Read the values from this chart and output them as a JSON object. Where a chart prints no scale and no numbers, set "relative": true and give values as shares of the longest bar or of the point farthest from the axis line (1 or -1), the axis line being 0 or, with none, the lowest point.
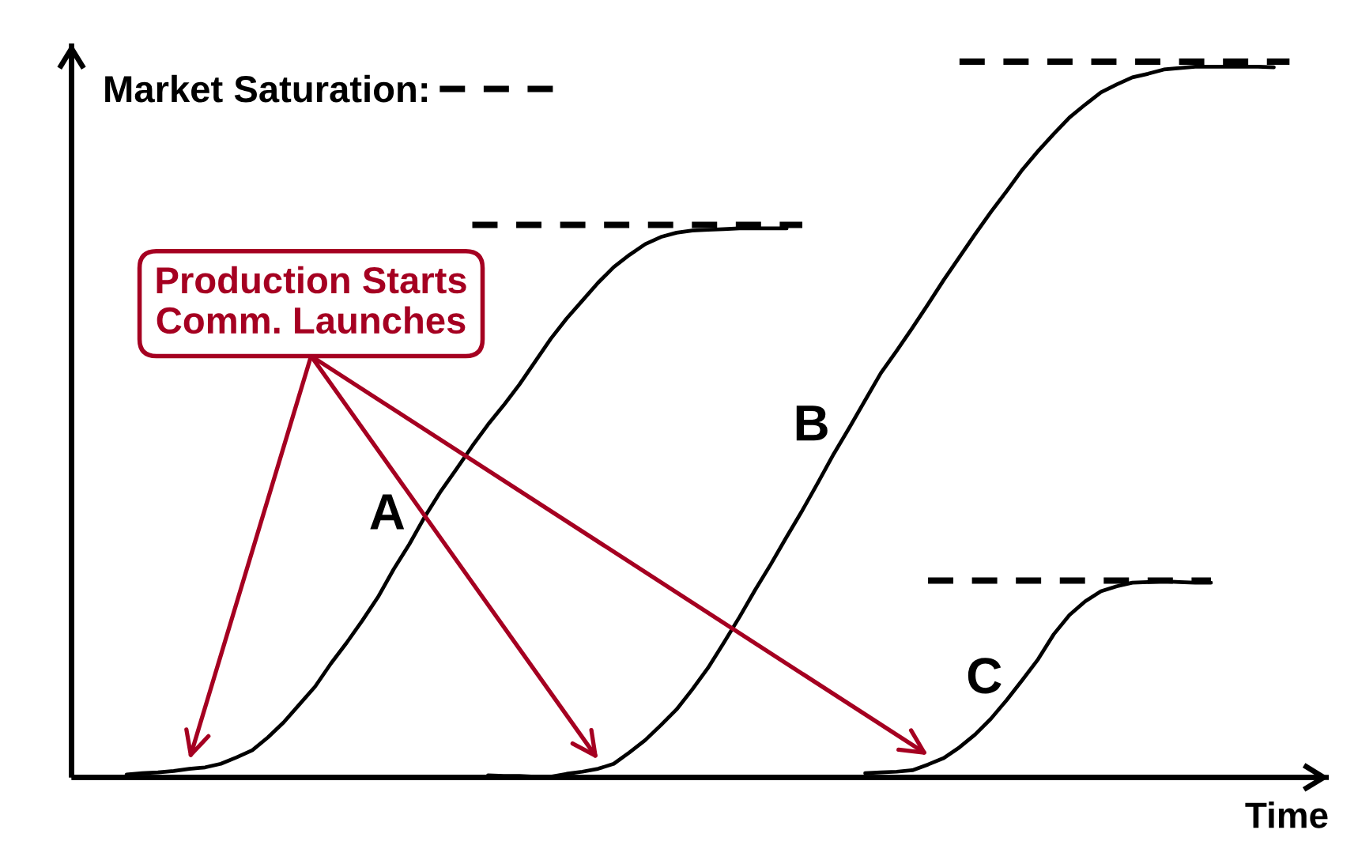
{
  "chart_data": {
    "type": "line",
    "relative": true,
    "xlabel": "Time",
    "legend": "top left",
    "tick_labels": false,
    "categories": [
      null,
      null,
      null,
      null,
      null,
      null,
      null,
      null,
      null,
      null,
      null,
      null,
      null,
      null,
      null,
      null,
      null,
      null,
      null,
      null,
      null,
      null,
      null,
      null,
      null,
      null,
      null,
      null,
      null,
      null,
      null,
      null,
      null,
      null,
      null,
      null,
      null,
      null,
      null,
      null,
      null,
      null,
      null,
      null,
      null,
      null,
      null,
      null,
      null,
      null,
      null,
      null,
      null,
      null,
      null,
      null,
      null,
      null,
      null,
      null,
      null,
      null,
      null,
      null,
      null,
      null,
      null,
      null,
      null,
      null,
      null,
      null,
      null,
      null,
      null,
      null,
      null,
      null,
      null,
      null
    ],
    "series": [
      {
        "name": "A",
        "color": "#000000",
        "values": [
          null,
          null,
          null,
          0.004,
          0.006,
          0.007,
          0.009,
          0.012,
          0.014,
          0.019,
          0.028,
          0.038,
          0.056,
          0.077,
          0.102,
          0.127,
          0.159,
          0.188,
          0.219,
          0.252,
          0.291,
          0.326,
          0.365,
          0.4,
          0.431,
          0.463,
          0.493,
          0.52,
          0.549,
          0.581,
          0.613,
          0.641,
          0.666,
          0.691,
          0.713,
          0.73,
          0.745,
          0.755,
          0.761,
          0.764,
          0.765,
          0.766,
          0.767,
          0.767,
          0.767,
          0.767,
          null,
          null,
          null,
          null,
          null,
          null,
          null,
          null,
          null,
          null,
          null,
          null,
          null,
          null,
          null,
          null,
          null,
          null,
          null,
          null,
          null,
          null,
          null,
          null,
          null,
          null,
          null,
          null,
          null,
          null,
          null,
          null,
          null,
          null
        ]
      },
      {
        "name": "B",
        "color": "#000000",
        "values": [
          null,
          null,
          null,
          null,
          null,
          null,
          null,
          null,
          null,
          null,
          null,
          null,
          null,
          null,
          null,
          null,
          null,
          null,
          null,
          null,
          null,
          null,
          null,
          null,
          null,
          null,
          0.003,
          0.002,
          0.002,
          0.001,
          0.001,
          0.005,
          0.008,
          0.012,
          0.019,
          0.035,
          0.052,
          0.073,
          0.095,
          0.123,
          0.153,
          0.188,
          0.224,
          0.262,
          0.298,
          0.336,
          0.373,
          0.412,
          0.452,
          0.489,
          0.527,
          0.565,
          0.596,
          0.628,
          0.661,
          0.695,
          0.727,
          0.759,
          0.79,
          0.819,
          0.849,
          0.875,
          0.899,
          0.922,
          0.94,
          0.957,
          0.968,
          0.978,
          0.983,
          0.989,
          0.991,
          0.993,
          0.993,
          0.993,
          0.993,
          0.993,
          0.992,
          null,
          null,
          null
        ]
      },
      {
        "name": "C",
        "color": "#000000",
        "values": [
          null,
          null,
          null,
          null,
          null,
          null,
          null,
          null,
          null,
          null,
          null,
          null,
          null,
          null,
          null,
          null,
          null,
          null,
          null,
          null,
          null,
          null,
          null,
          null,
          null,
          null,
          null,
          null,
          null,
          null,
          null,
          null,
          null,
          null,
          null,
          null,
          null,
          null,
          null,
          null,
          null,
          null,
          null,
          null,
          null,
          null,
          null,
          null,
          null,
          null,
          0.006,
          0.007,
          0.008,
          0.01,
          0.018,
          0.027,
          0.042,
          0.06,
          0.082,
          0.108,
          0.136,
          0.165,
          0.2,
          0.227,
          0.246,
          0.26,
          0.267,
          0.272,
          0.273,
          0.274,
          0.273,
          0.272,
          0.272,
          null,
          null,
          null,
          null,
          null,
          null,
          null
        ]
      },
      {
        "name": "Market Saturation:",
        "color": "#000000",
        "line_style": "dashed",
        "values": [
          null,
          null,
          null,
          null,
          null,
          null,
          null,
          null,
          null,
          null,
          null,
          null,
          null,
          null,
          null,
          null,
          null,
          null,
          null,
          null,
          null,
          null,
          null,
          null,
          null,
          0.772,
          0.772,
          0.772,
          0.772,
          0.772,
          0.772,
          0.772,
          0.772,
          0.772,
          0.772,
          0.772,
          0.772,
          0.772,
          0.772,
          0.772,
          0.772,
          0.772,
          0.772,
          0.772,
          0.772,
          0.772,
          0.772,
          null,
          null,
          null,
          null,
          null,
          null,
          null,
          null,
          null,
          null,
          null,
          null,
          null,
          null,
          null,
          null,
          null,
          null,
          null,
          null,
          null,
          null,
          null,
          null,
          null,
          null,
          null,
          null,
          null,
          null,
          null,
          null,
          null
        ]
      },
      {
        "color": "#000000",
        "line_style": "dashed",
        "values": [
          null,
          null,
          null,
          null,
          null,
          null,
          null,
          null,
          null,
          null,
          null,
          null,
          null,
          null,
          null,
          null,
          null,
          null,
          null,
          null,
          null,
          null,
          null,
          null,
          null,
          null,
          null,
          null,
          null,
          null,
          null,
          null,
          null,
          null,
          null,
          null,
          null,
          null,
          null,
          null,
          null,
          null,
          null,
          null,
          null,
          null,
          null,
          null,
          null,
          null,
          null,
          null,
          null,
          null,
          null,
          null,
          1,
          1,
          1,
          1,
          1,
          1,
          1,
          1,
          1,
          1,
          1,
          1,
          1,
          1,
          1,
          1,
          1,
          1,
          1,
          1,
          1,
          1,
          null,
          null
        ]
      },
      {
        "color": "#000000",
        "line_style": "dashed",
        "values": [
          null,
          null,
          null,
          null,
          null,
          null,
          null,
          null,
          null,
          null,
          null,
          null,
          null,
          null,
          null,
          null,
          null,
          null,
          null,
          null,
          null,
          null,
          null,
          null,
          null,
          null,
          null,
          null,
          null,
          null,
          null,
          null,
          null,
          null,
          null,
          null,
          null,
          null,
          null,
          null,
          null,
          null,
          null,
          null,
          null,
          null,
          null,
          null,
          null,
          null,
          null,
          null,
          null,
          null,
          0.275,
          0.275,
          0.275,
          0.275,
          0.275,
          0.275,
          0.275,
          0.275,
          0.275,
          0.275,
          0.275,
          0.275,
          0.275,
          0.275,
          0.275,
          0.275,
          0.275,
          0.275,
          0.275,
          null,
          null,
          null,
          null,
          null,
          null,
          null
        ]
      }
    ],
    "annotations": [
      "Production Starts\nComm. Launches"
    ]
  }
}
